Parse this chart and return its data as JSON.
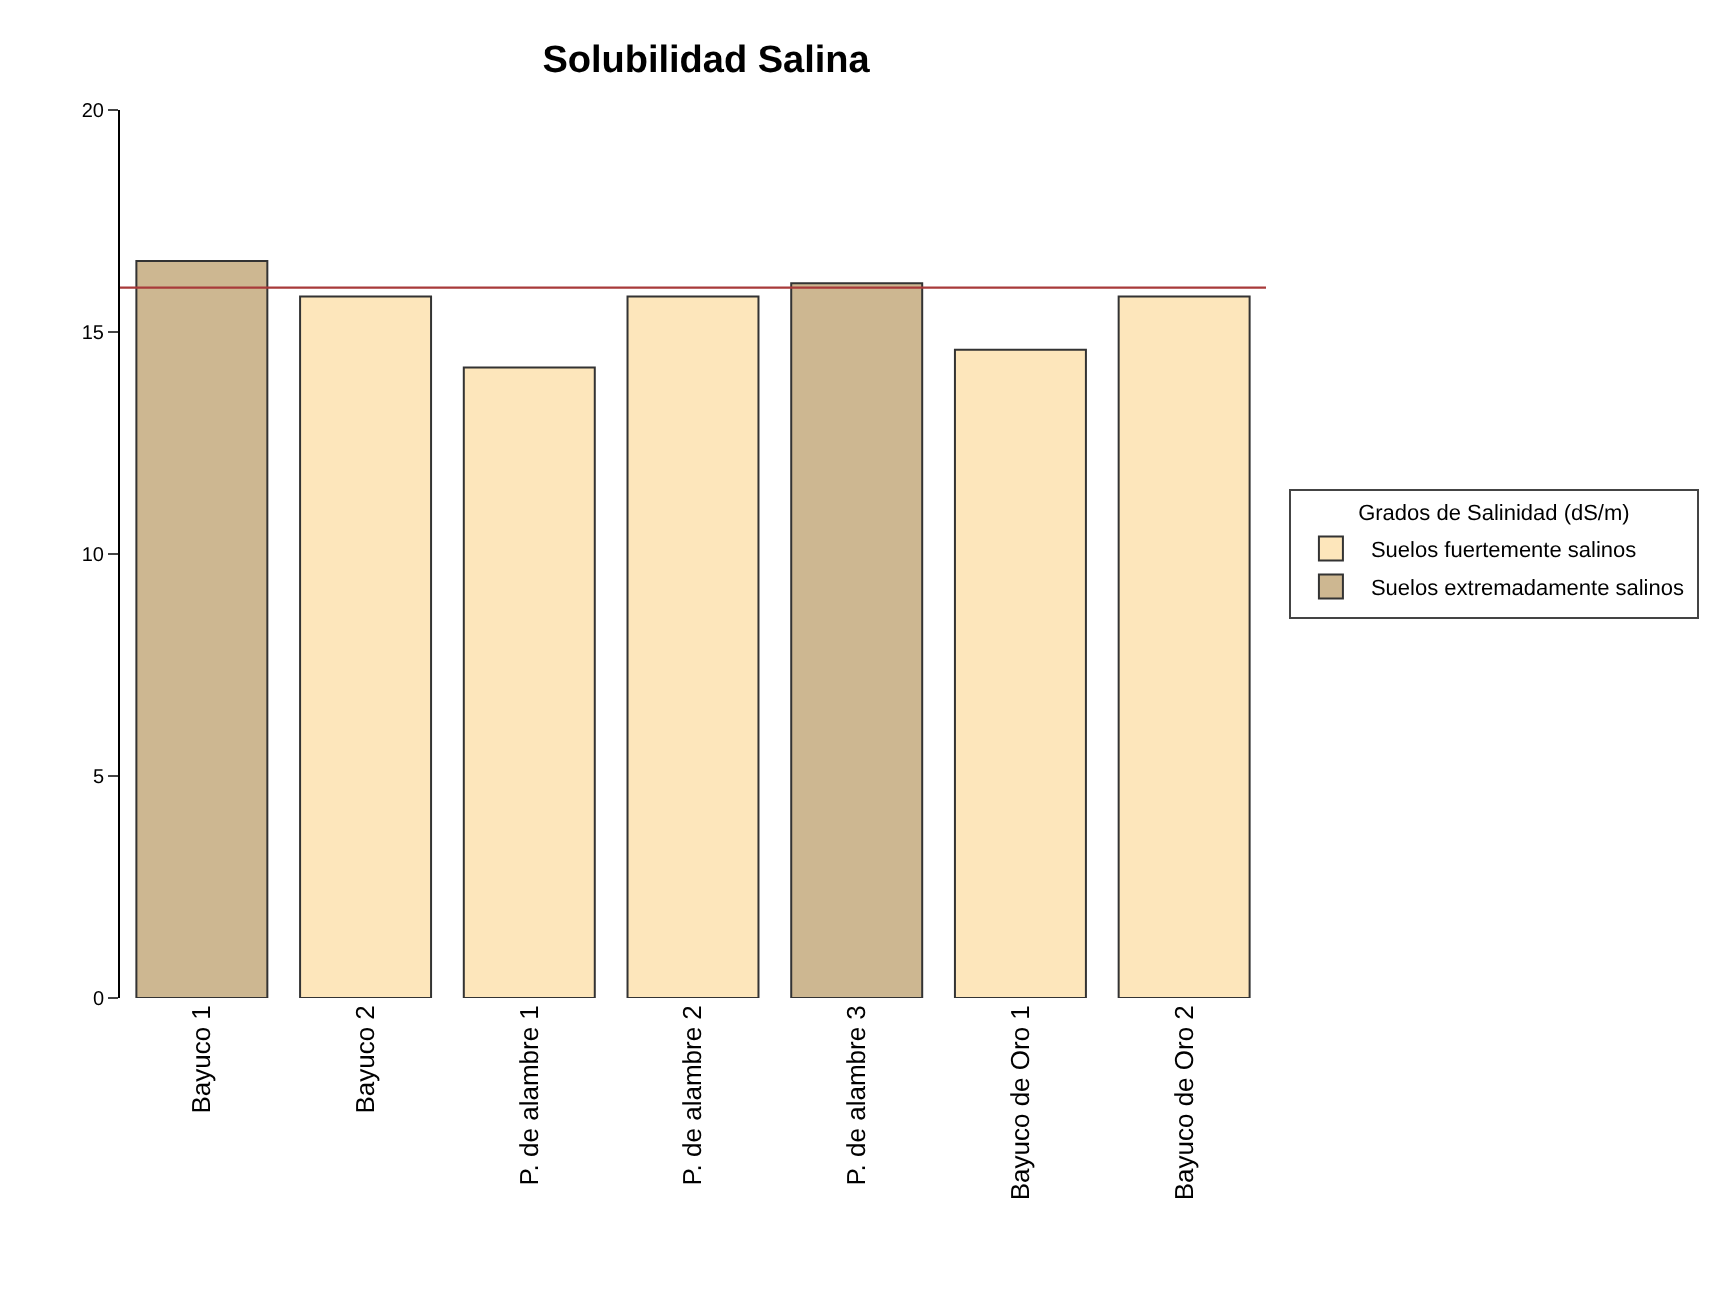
{
  "chart_data": {
    "type": "bar",
    "title": "Solubilidad Salina",
    "legend_title": "Grados de Salinidad (dS/m)",
    "categories": [
      "Bayuco 1",
      "Bayuco 2",
      "P. de alambre 1",
      "P. de alambre 2",
      "P. de alambre 3",
      "Bayuco de Oro 1",
      "Bayuco de Oro 2"
    ],
    "series": [
      {
        "name": "Suelos fuertemente salinos",
        "color": "#fde6bb",
        "values": [
          null,
          15.8,
          14.2,
          15.8,
          null,
          14.6,
          15.8
        ]
      },
      {
        "name": "Suelos extremadamente salinos",
        "color": "#cdb791",
        "values": [
          16.6,
          null,
          null,
          null,
          16.1,
          null,
          null
        ]
      }
    ],
    "ylim": [
      0,
      20
    ],
    "yticks": [
      0,
      5,
      10,
      15,
      20
    ],
    "grid": false,
    "legend": "right",
    "ref_lines": [
      {
        "axis": "y",
        "value": 16,
        "color": "#a83a3a"
      }
    ]
  }
}
